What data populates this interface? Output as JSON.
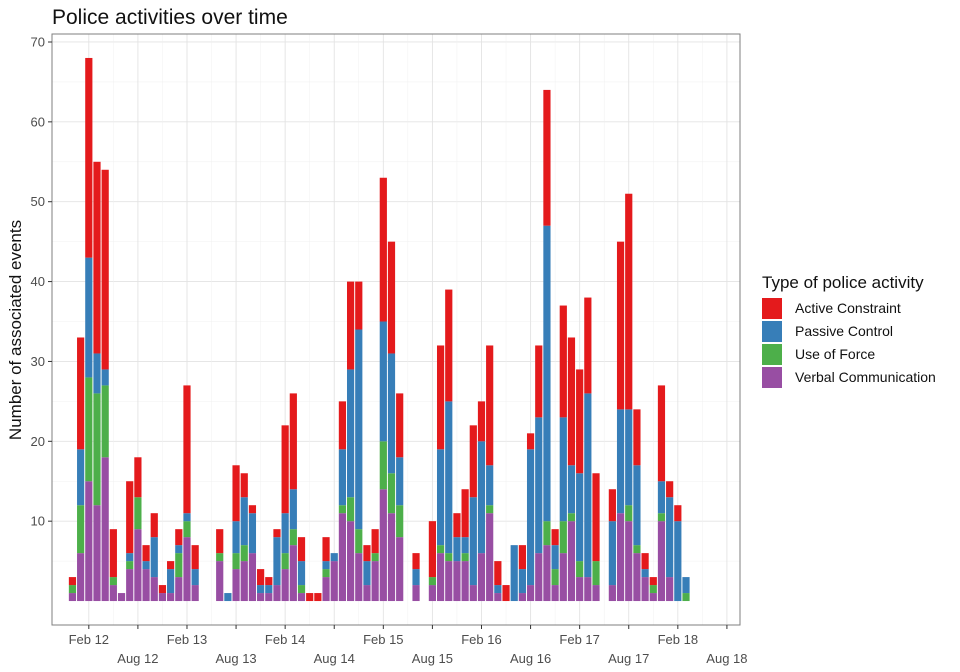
{
  "chart_data": {
    "type": "bar",
    "stacked": true,
    "title": "Police activities over time",
    "xlabel": "",
    "ylabel": "Number of associated events",
    "ylim": [
      -3,
      71
    ],
    "yticks": [
      10,
      20,
      30,
      40,
      50,
      60,
      70
    ],
    "x_unit": "month",
    "x_ticks": [
      {
        "label": "Feb 12",
        "month": 1
      },
      {
        "label": "Aug 12",
        "month": 7
      },
      {
        "label": "Feb 13",
        "month": 13
      },
      {
        "label": "Aug 13",
        "month": 19
      },
      {
        "label": "Feb 14",
        "month": 25
      },
      {
        "label": "Aug 14",
        "month": 31
      },
      {
        "label": "Feb 15",
        "month": 37
      },
      {
        "label": "Aug 15",
        "month": 43
      },
      {
        "label": "Feb 16",
        "month": 49
      },
      {
        "label": "Aug 16",
        "month": 55
      },
      {
        "label": "Feb 17",
        "month": 61
      },
      {
        "label": "Aug 17",
        "month": 67
      },
      {
        "label": "Feb 18",
        "month": 73
      },
      {
        "label": "Aug 18",
        "month": 79
      }
    ],
    "grid": true,
    "legend_position": "right",
    "legend_title": "Type of police activity",
    "stack_order": [
      "Verbal Communication",
      "Use of Force",
      "Passive Control",
      "Active Constraint"
    ],
    "series": [
      {
        "name": "Active Constraint",
        "color": "#E41A1C"
      },
      {
        "name": "Passive Control",
        "color": "#377EB8"
      },
      {
        "name": "Use of Force",
        "color": "#4DAF4A"
      },
      {
        "name": "Verbal Communication",
        "color": "#984EA3"
      }
    ],
    "bars": [
      {
        "x": "Dec 11",
        "month": -1,
        "vc": 1,
        "uf": 1,
        "pc": 0,
        "ac": 1
      },
      {
        "x": "Jan 12",
        "month": 0,
        "vc": 6,
        "uf": 6,
        "pc": 7,
        "ac": 14
      },
      {
        "x": "Feb 12",
        "month": 1,
        "vc": 15,
        "uf": 13,
        "pc": 15,
        "ac": 25
      },
      {
        "x": "Mar 12",
        "month": 2,
        "vc": 12,
        "uf": 14,
        "pc": 5,
        "ac": 24
      },
      {
        "x": "Apr 12",
        "month": 3,
        "vc": 18,
        "uf": 9,
        "pc": 2,
        "ac": 25
      },
      {
        "x": "May 12",
        "month": 4,
        "vc": 2,
        "uf": 1,
        "pc": 0,
        "ac": 6
      },
      {
        "x": "Jun 12",
        "month": 5,
        "vc": 1,
        "uf": 0,
        "pc": 0,
        "ac": 0
      },
      {
        "x": "Jul 12",
        "month": 6,
        "vc": 4,
        "uf": 1,
        "pc": 1,
        "ac": 9
      },
      {
        "x": "Aug 12",
        "month": 7,
        "vc": 9,
        "uf": 4,
        "pc": 0,
        "ac": 5
      },
      {
        "x": "Sep 12",
        "month": 8,
        "vc": 4,
        "uf": 0,
        "pc": 1,
        "ac": 2
      },
      {
        "x": "Oct 12",
        "month": 9,
        "vc": 3,
        "uf": 0,
        "pc": 5,
        "ac": 3
      },
      {
        "x": "Nov 12",
        "month": 10,
        "vc": 1,
        "uf": 0,
        "pc": 0,
        "ac": 1
      },
      {
        "x": "Dec 12",
        "month": 11,
        "vc": 1,
        "uf": 0,
        "pc": 3,
        "ac": 1
      },
      {
        "x": "Jan 13",
        "month": 12,
        "vc": 3,
        "uf": 3,
        "pc": 1,
        "ac": 2
      },
      {
        "x": "Feb 13",
        "month": 13,
        "vc": 8,
        "uf": 2,
        "pc": 1,
        "ac": 16
      },
      {
        "x": "Mar 13",
        "month": 14,
        "vc": 2,
        "uf": 0,
        "pc": 2,
        "ac": 3
      },
      {
        "x": "Jun 13",
        "month": 17,
        "vc": 5,
        "uf": 1,
        "pc": 0,
        "ac": 3
      },
      {
        "x": "Jul 13",
        "month": 18,
        "vc": 0,
        "uf": 0,
        "pc": 1,
        "ac": 0
      },
      {
        "x": "Aug 13",
        "month": 19,
        "vc": 4,
        "uf": 2,
        "pc": 4,
        "ac": 7
      },
      {
        "x": "Sep 13",
        "month": 20,
        "vc": 5,
        "uf": 2,
        "pc": 6,
        "ac": 3
      },
      {
        "x": "Oct 13",
        "month": 21,
        "vc": 6,
        "uf": 0,
        "pc": 5,
        "ac": 1
      },
      {
        "x": "Nov 13",
        "month": 22,
        "vc": 1,
        "uf": 0,
        "pc": 1,
        "ac": 2
      },
      {
        "x": "Dec 13",
        "month": 23,
        "vc": 1,
        "uf": 0,
        "pc": 1,
        "ac": 1
      },
      {
        "x": "Jan 14",
        "month": 24,
        "vc": 2,
        "uf": 0,
        "pc": 6,
        "ac": 1
      },
      {
        "x": "Feb 14",
        "month": 25,
        "vc": 4,
        "uf": 2,
        "pc": 5,
        "ac": 11
      },
      {
        "x": "Mar 14",
        "month": 26,
        "vc": 7,
        "uf": 2,
        "pc": 5,
        "ac": 12
      },
      {
        "x": "Apr 14",
        "month": 27,
        "vc": 1,
        "uf": 1,
        "pc": 3,
        "ac": 3
      },
      {
        "x": "May 14",
        "month": 28,
        "vc": 0,
        "uf": 0,
        "pc": 0,
        "ac": 1
      },
      {
        "x": "Jun 14",
        "month": 29,
        "vc": 0,
        "uf": 0,
        "pc": 0,
        "ac": 1
      },
      {
        "x": "Jul 14",
        "month": 30,
        "vc": 3,
        "uf": 1,
        "pc": 1,
        "ac": 3
      },
      {
        "x": "Aug 14",
        "month": 31,
        "vc": 5,
        "uf": 0,
        "pc": 1,
        "ac": 0
      },
      {
        "x": "Sep 14",
        "month": 32,
        "vc": 11,
        "uf": 1,
        "pc": 7,
        "ac": 6
      },
      {
        "x": "Oct 14",
        "month": 33,
        "vc": 10,
        "uf": 3,
        "pc": 16,
        "ac": 11
      },
      {
        "x": "Nov 14",
        "month": 34,
        "vc": 6,
        "uf": 3,
        "pc": 25,
        "ac": 6
      },
      {
        "x": "Dec 14",
        "month": 35,
        "vc": 2,
        "uf": 0,
        "pc": 3,
        "ac": 2
      },
      {
        "x": "Jan 15",
        "month": 36,
        "vc": 5,
        "uf": 1,
        "pc": 0,
        "ac": 3
      },
      {
        "x": "Feb 15",
        "month": 37,
        "vc": 14,
        "uf": 6,
        "pc": 15,
        "ac": 18
      },
      {
        "x": "Mar 15",
        "month": 38,
        "vc": 11,
        "uf": 5,
        "pc": 15,
        "ac": 14
      },
      {
        "x": "Apr 15",
        "month": 39,
        "vc": 8,
        "uf": 4,
        "pc": 6,
        "ac": 8
      },
      {
        "x": "Jun 15",
        "month": 41,
        "vc": 2,
        "uf": 0,
        "pc": 2,
        "ac": 2
      },
      {
        "x": "Aug 15",
        "month": 43,
        "vc": 2,
        "uf": 1,
        "pc": 0,
        "ac": 7
      },
      {
        "x": "Sep 15",
        "month": 44,
        "vc": 6,
        "uf": 1,
        "pc": 12,
        "ac": 13
      },
      {
        "x": "Oct 15",
        "month": 45,
        "vc": 5,
        "uf": 1,
        "pc": 19,
        "ac": 14
      },
      {
        "x": "Nov 15",
        "month": 46,
        "vc": 5,
        "uf": 0,
        "pc": 3,
        "ac": 3
      },
      {
        "x": "Dec 15",
        "month": 47,
        "vc": 5,
        "uf": 1,
        "pc": 2,
        "ac": 6
      },
      {
        "x": "Jan 16",
        "month": 48,
        "vc": 2,
        "uf": 0,
        "pc": 11,
        "ac": 9
      },
      {
        "x": "Feb 16",
        "month": 49,
        "vc": 6,
        "uf": 0,
        "pc": 14,
        "ac": 5
      },
      {
        "x": "Mar 16",
        "month": 50,
        "vc": 11,
        "uf": 1,
        "pc": 5,
        "ac": 15
      },
      {
        "x": "Apr 16",
        "month": 51,
        "vc": 1,
        "uf": 0,
        "pc": 1,
        "ac": 3
      },
      {
        "x": "May 16",
        "month": 52,
        "vc": 0,
        "uf": 0,
        "pc": 0,
        "ac": 2
      },
      {
        "x": "Jun 16",
        "month": 53,
        "vc": 0,
        "uf": 0,
        "pc": 7,
        "ac": 0
      },
      {
        "x": "Jul 16",
        "month": 54,
        "vc": 1,
        "uf": 0,
        "pc": 3,
        "ac": 3
      },
      {
        "x": "Aug 16",
        "month": 55,
        "vc": 2,
        "uf": 0,
        "pc": 17,
        "ac": 2
      },
      {
        "x": "Sep 16",
        "month": 56,
        "vc": 6,
        "uf": 0,
        "pc": 17,
        "ac": 9
      },
      {
        "x": "Oct 16",
        "month": 57,
        "vc": 7,
        "uf": 3,
        "pc": 37,
        "ac": 17
      },
      {
        "x": "Nov 16",
        "month": 58,
        "vc": 2,
        "uf": 2,
        "pc": 3,
        "ac": 2
      },
      {
        "x": "Dec 16",
        "month": 59,
        "vc": 6,
        "uf": 4,
        "pc": 13,
        "ac": 14
      },
      {
        "x": "Jan 17",
        "month": 60,
        "vc": 10,
        "uf": 1,
        "pc": 6,
        "ac": 16
      },
      {
        "x": "Feb 17",
        "month": 61,
        "vc": 3,
        "uf": 2,
        "pc": 11,
        "ac": 13
      },
      {
        "x": "Mar 17",
        "month": 62,
        "vc": 3,
        "uf": 0,
        "pc": 23,
        "ac": 12
      },
      {
        "x": "Apr 17",
        "month": 63,
        "vc": 2,
        "uf": 3,
        "pc": 0,
        "ac": 11
      },
      {
        "x": "Jun 17",
        "month": 65,
        "vc": 2,
        "uf": 0,
        "pc": 8,
        "ac": 4
      },
      {
        "x": "Jul 17",
        "month": 66,
        "vc": 11,
        "uf": 0,
        "pc": 13,
        "ac": 21
      },
      {
        "x": "Aug 17",
        "month": 67,
        "vc": 10,
        "uf": 2,
        "pc": 12,
        "ac": 27
      },
      {
        "x": "Sep 17",
        "month": 68,
        "vc": 6,
        "uf": 1,
        "pc": 10,
        "ac": 7
      },
      {
        "x": "Oct 17",
        "month": 69,
        "vc": 3,
        "uf": 0,
        "pc": 1,
        "ac": 2
      },
      {
        "x": "Nov 17",
        "month": 70,
        "vc": 1,
        "uf": 1,
        "pc": 0,
        "ac": 1
      },
      {
        "x": "Dec 17",
        "month": 71,
        "vc": 10,
        "uf": 1,
        "pc": 4,
        "ac": 12
      },
      {
        "x": "Jan 18",
        "month": 72,
        "vc": 3,
        "uf": 0,
        "pc": 10,
        "ac": 2
      },
      {
        "x": "Feb 18",
        "month": 73,
        "vc": 0,
        "uf": 0,
        "pc": 10,
        "ac": 2
      },
      {
        "x": "Mar 18",
        "month": 74,
        "vc": 0,
        "uf": 1,
        "pc": 2,
        "ac": 0
      }
    ]
  }
}
